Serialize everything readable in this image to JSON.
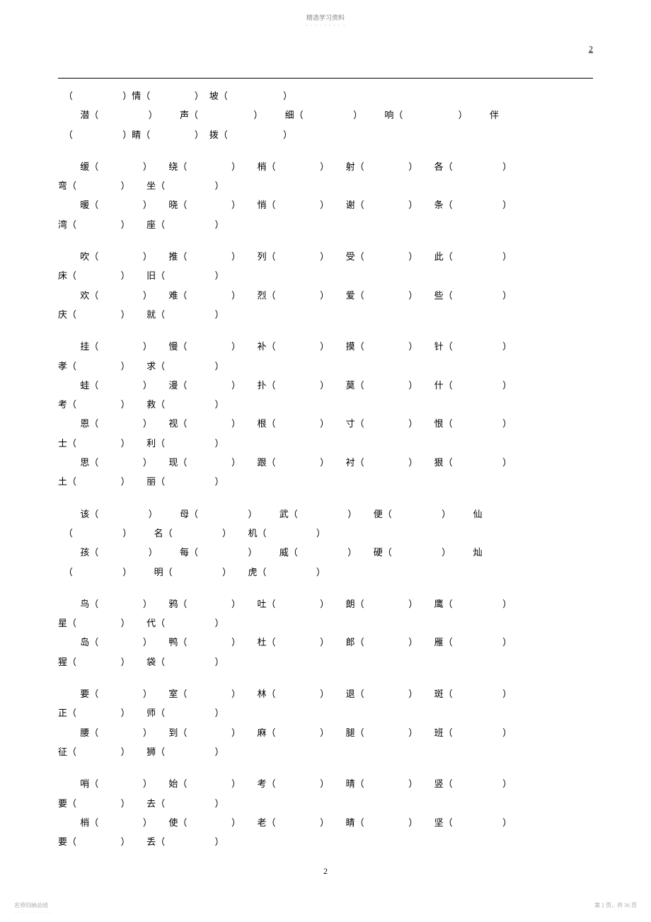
{
  "header": {
    "title": "精选学习资料",
    "dashes": "- - - - - - - - -"
  },
  "page_corner": "2",
  "blocks": [
    {
      "rows": [
        " （         ）情（        ） 坡（          ）",
        "    潜（         ）    声（          ）    细（         ）    响（          ）    伴",
        " （         ）睛（        ） 拨（          ）"
      ]
    },
    {
      "rows": [
        "    缓（        ）   绕（        ）   梢（        ）   射（        ）   各（         ）",
        "弯（        ）   坐（         ）",
        "    暖（        ）   晓（        ）   悄（        ）   谢（        ）   条（         ）",
        "湾（        ）   座（         ）"
      ]
    },
    {
      "rows": [
        "    吹（        ）   推（        ）   列（        ）   受（        ）   此（         ）",
        "床（        ）   旧（         ）",
        "    欢（        ）   难（        ）   烈（        ）   爱（        ）   些（         ）",
        "庆（        ）   就（         ）"
      ]
    },
    {
      "rows": [
        "    挂（        ）   慢（        ）   补（        ）   摸（        ）   针（         ）",
        "孝（        ）   求（         ）",
        "    蛙（        ）   漫（        ）   扑（        ）   莫（        ）   什（         ）",
        "考（        ）   救（         ）",
        "    恩（        ）   视（        ）   根（        ）   寸（        ）   恨（         ）",
        "士（        ）   利（         ）",
        "    思（        ）   现（        ）   跟（        ）   衬（        ）   狠（         ）",
        "土（        ）   丽（         ）"
      ]
    },
    {
      "rows": [
        "    该（         ）    母（         ）    武（         ）   便（         ）    仙",
        " （         ）    名（         ）   机（         ）",
        "    孩（         ）    每（         ）    威（         ）   硬（         ）    灿",
        " （         ）    明（         ）   虎（         ）"
      ]
    },
    {
      "rows": [
        "    鸟（        ）   鸦（        ）   吐（        ）   朗（        ）   鹰（         ）",
        "星（        ）   代（         ）",
        "    岛（        ）   鸭（        ）   杜（        ）   郎（        ）   雁（         ）",
        "猩（        ）   袋（         ）"
      ]
    },
    {
      "rows": [
        "    要（        ）   室（        ）   林（        ）   退（        ）   斑（         ）",
        "正（        ）   师（         ）",
        "    腰（        ）   到（        ）   麻（        ）   腿（        ）   班（         ）",
        "征（        ）   狮（         ）"
      ]
    },
    {
      "rows": [
        "    哨（        ）   始（        ）   考（        ）   晴（        ）   竖（         ）",
        "要（        ）   去（         ）",
        "    梢（        ）   使（        ）   老（        ）   睛（        ）   坚（         ）",
        "要（        ）   丢（         ）"
      ]
    }
  ],
  "page_num_center": "2",
  "footer": {
    "left": "名师归纳总结",
    "left_dash": "- - - - - - - - -",
    "right": "第 2 页，共 36 页"
  }
}
